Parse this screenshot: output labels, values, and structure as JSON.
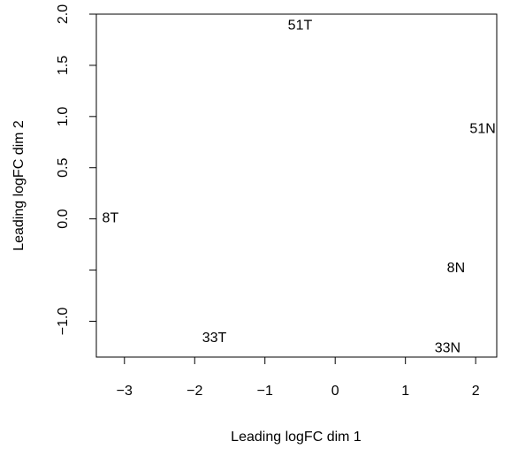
{
  "chart_data": {
    "type": "scatter",
    "title": "",
    "xlabel": "Leading logFC dim 1",
    "ylabel": "Leading logFC dim 2",
    "xlim": [
      -3.4,
      2.3
    ],
    "ylim": [
      -1.35,
      2.0
    ],
    "xticks": [
      -3,
      -2,
      -1,
      0,
      1,
      2
    ],
    "xtick_labels": [
      "−3",
      "−2",
      "−1",
      "0",
      "1",
      "2"
    ],
    "yticks": [
      -1.0,
      -0.5,
      0.0,
      0.5,
      1.0,
      1.5,
      2.0
    ],
    "ytick_labels": [
      "−1.0",
      "",
      "0.0",
      "0.5",
      "1.0",
      "1.5",
      "2.0"
    ],
    "points": [
      {
        "label": "51T",
        "x": -0.5,
        "y": 1.9
      },
      {
        "label": "51N",
        "x": 2.1,
        "y": 0.89
      },
      {
        "label": "8T",
        "x": -3.2,
        "y": 0.02
      },
      {
        "label": "8N",
        "x": 1.72,
        "y": -0.47
      },
      {
        "label": "33T",
        "x": -1.72,
        "y": -1.15
      },
      {
        "label": "33N",
        "x": 1.6,
        "y": -1.25
      }
    ]
  }
}
